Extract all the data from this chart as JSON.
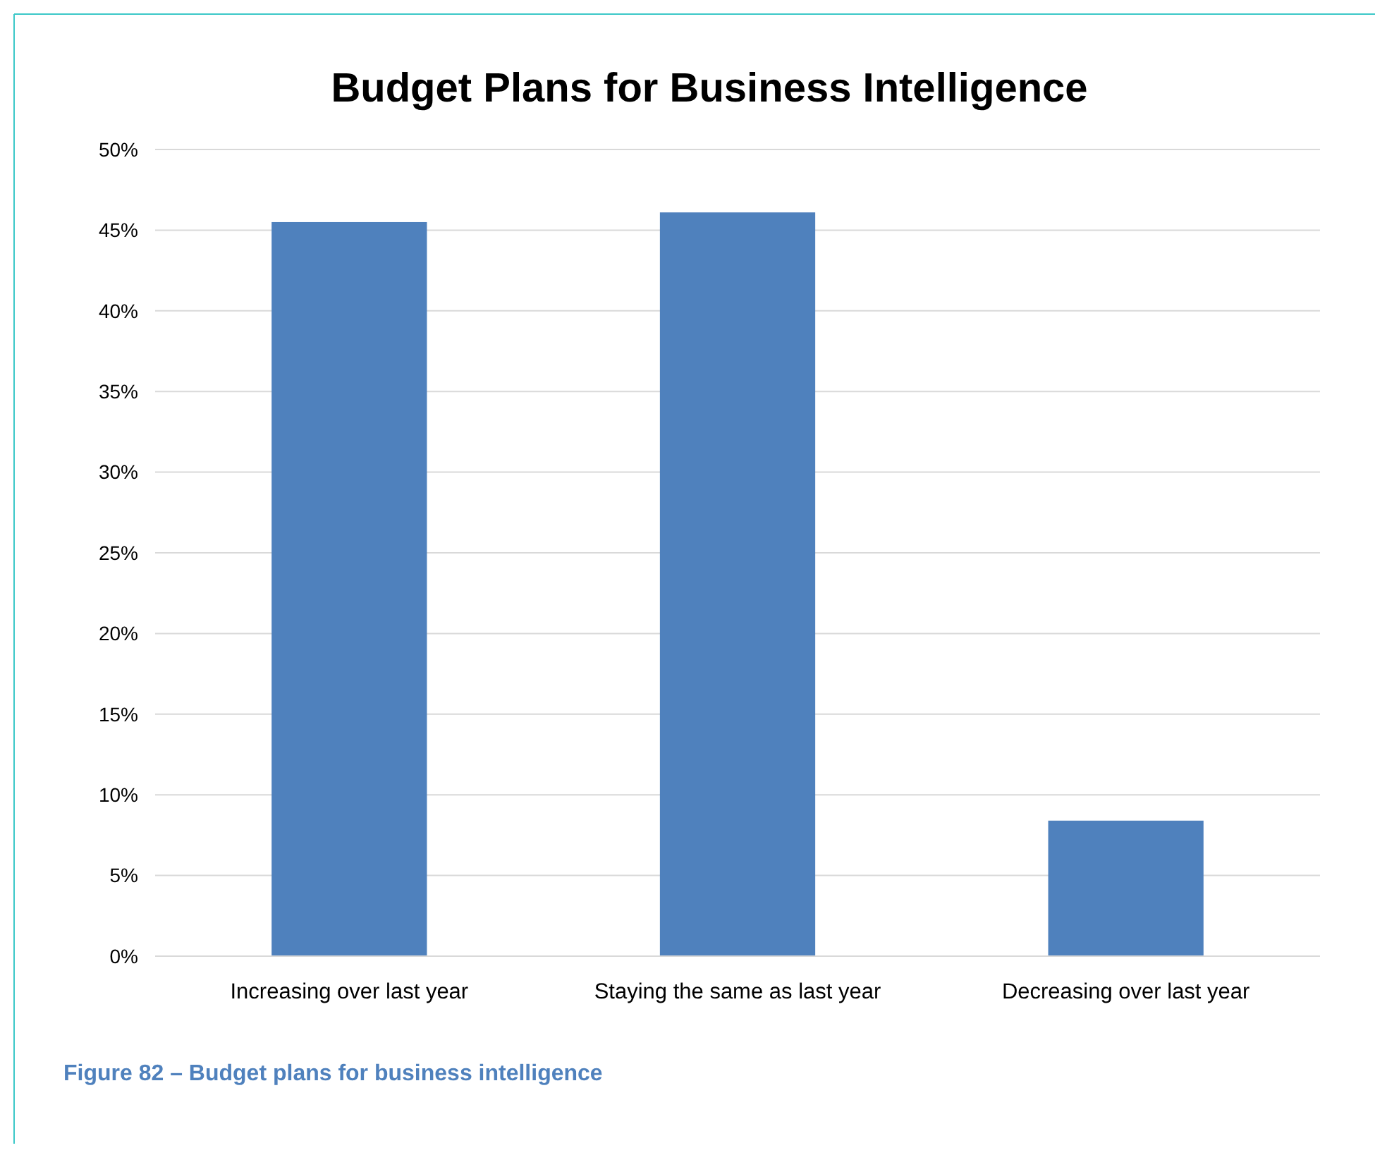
{
  "chart_data": {
    "type": "bar",
    "title": "Budget Plans for Business Intelligence",
    "categories": [
      "Increasing over last year",
      "Staying the same as last year",
      "Decreasing over last year"
    ],
    "values": [
      45.5,
      46.1,
      8.4
    ],
    "color": "#4f81bd",
    "ylim": [
      0,
      50
    ],
    "yticks": [
      {
        "value": 0,
        "label": "0%"
      },
      {
        "value": 5,
        "label": "5%"
      },
      {
        "value": 10,
        "label": "10%"
      },
      {
        "value": 15,
        "label": "15%"
      },
      {
        "value": 20,
        "label": "20%"
      },
      {
        "value": 25,
        "label": "25%"
      },
      {
        "value": 30,
        "label": "30%"
      },
      {
        "value": 35,
        "label": "35%"
      },
      {
        "value": 40,
        "label": "40%"
      },
      {
        "value": 45,
        "label": "45%"
      },
      {
        "value": 50,
        "label": "50%"
      }
    ],
    "grid": "y",
    "annotations": [
      "Figure 82 – Budget plans for business intelligence"
    ]
  }
}
